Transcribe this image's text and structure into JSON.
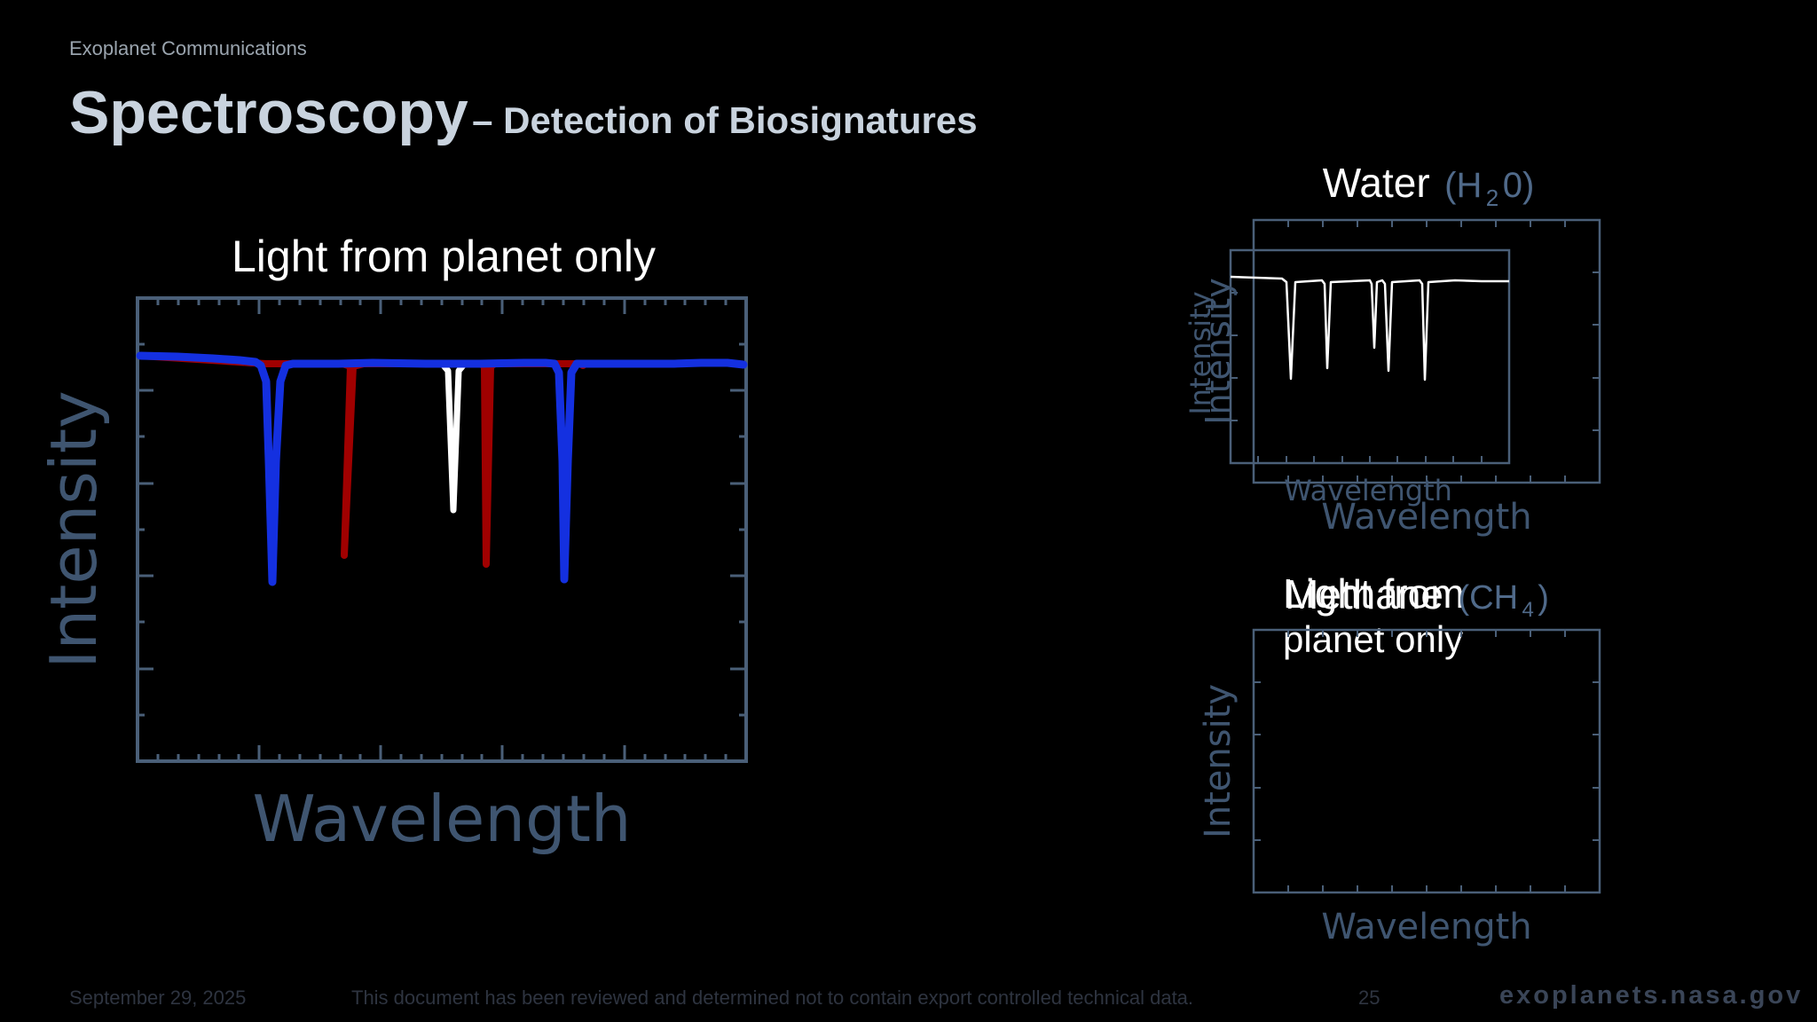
{
  "header": {
    "overline": "Exoplanet Communications",
    "title_main": "Spectroscopy",
    "title_sub": "– Detection of Biosignatures"
  },
  "main_plot": {
    "title": "Light from planet only",
    "ylabel": "Intensity",
    "xlabel": "Wavelength"
  },
  "water_plot": {
    "title": "Water",
    "formula_open": "(H",
    "formula_sub": "2",
    "formula_close": "0)",
    "ylabel_front": "Intensity",
    "ylabel_back": "Intensity",
    "xlabel_front": "Wavelength",
    "xlabel_back": "Wavelength"
  },
  "methane_plot": {
    "title": "Methane",
    "overlap_text_line1": "Light from",
    "overlap_text_line2": "planet only",
    "formula_open": "(CH",
    "formula_sub": "4",
    "formula_close": ")",
    "ylabel": "Intensity",
    "xlabel": "Wavelength"
  },
  "footer": {
    "date": "September 29, 2025",
    "note": "This document has been reviewed and determined not to contain export controlled technical data.",
    "page": "25",
    "site": "exoplanets.nasa.gov"
  },
  "colors": {
    "axis": "#4a5f78",
    "label": "#3f5570",
    "blue_line": "#1430e0",
    "red_line": "#a00000",
    "white_line": "#ffffff"
  }
}
